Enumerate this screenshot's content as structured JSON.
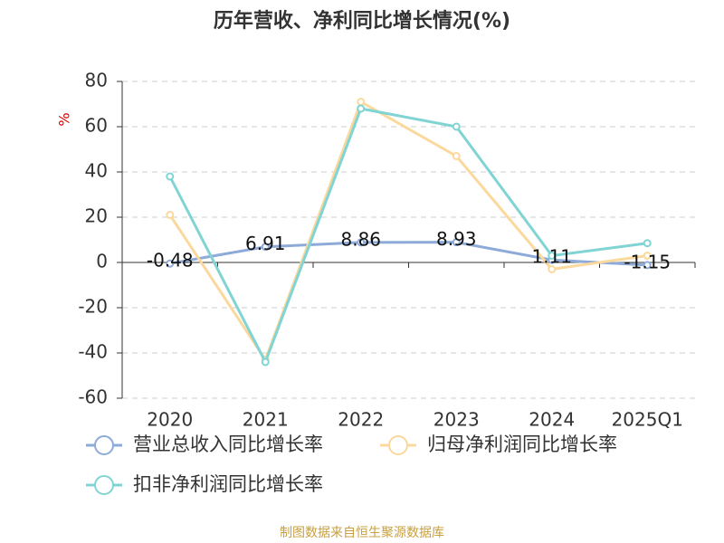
{
  "chart_data": {
    "type": "line",
    "title": "历年营收、净利同比增长情况(%)",
    "y_label": "%",
    "categories": [
      "2020",
      "2021",
      "2022",
      "2023",
      "2024",
      "2025Q1"
    ],
    "series": [
      {
        "name": "营业总收入同比增长率",
        "color": "#8eaad8",
        "values": [
          -0.48,
          6.91,
          8.86,
          8.93,
          1.11,
          -1.15
        ],
        "show_labels": true
      },
      {
        "name": "归母净利润同比增长率",
        "color": "#fbd89c",
        "values": [
          21,
          -43,
          71,
          47,
          -3,
          3
        ],
        "show_labels": false
      },
      {
        "name": "扣非净利润同比增长率",
        "color": "#80d4d4",
        "values": [
          38,
          -44,
          68,
          60,
          3,
          8.5
        ],
        "show_labels": false
      }
    ],
    "ylim": [
      -60,
      80
    ],
    "yticks": [
      -60,
      -40,
      -20,
      0,
      20,
      40,
      60,
      80
    ],
    "grid": true,
    "legend": "bottom",
    "source": "制图数据来自恒生聚源数据库"
  }
}
